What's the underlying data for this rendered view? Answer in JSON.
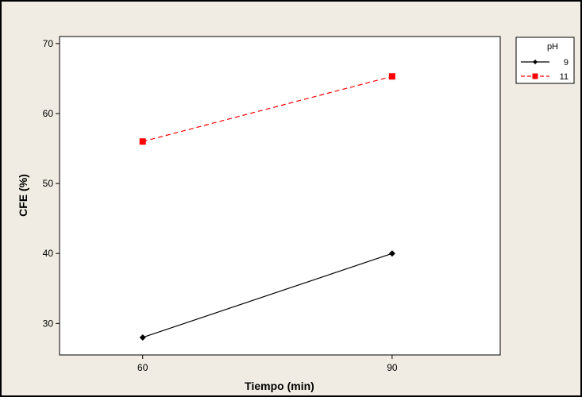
{
  "chart_data": {
    "type": "line",
    "xlabel": "Tiempo (min)",
    "ylabel": "CFE (%)",
    "x_categories": [
      "60",
      "90"
    ],
    "xlim": [
      50,
      103
    ],
    "ylim": [
      25.5,
      71
    ],
    "yticks": [
      30,
      40,
      50,
      60,
      70
    ],
    "grid": false,
    "legend": {
      "title": "pH",
      "position": "right"
    },
    "series": [
      {
        "name": "9",
        "x": [
          60,
          90
        ],
        "values": [
          28,
          40
        ],
        "color": "#000000",
        "marker": "diamond",
        "line": "solid"
      },
      {
        "name": "11",
        "x": [
          60,
          90
        ],
        "values": [
          56,
          65.3
        ],
        "color": "#ff0000",
        "marker": "square",
        "line": "dashed"
      }
    ],
    "colors": {
      "background": "#f0ece3",
      "plot_area": "#ffffff",
      "frame": "#000000"
    }
  }
}
